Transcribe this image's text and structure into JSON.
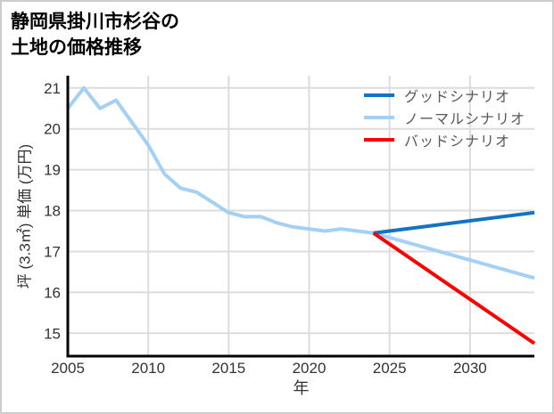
{
  "page": {
    "background": "#ffffff",
    "border_color": "#cccccc"
  },
  "header": {
    "title_lines": [
      "静岡県掛川市杉谷の",
      "土地の価格推移"
    ]
  },
  "chart_data": {
    "type": "line",
    "title": "静岡県掛川市杉谷の土地の価格推移",
    "xlabel": "年",
    "ylabel": "坪 (3.3㎡) 単価 (万円)",
    "xlim": [
      2005,
      2034
    ],
    "ylim": [
      14.44,
      21.3
    ],
    "x_ticks": [
      2005,
      2010,
      2015,
      2020,
      2025,
      2030
    ],
    "y_ticks": [
      15,
      16,
      17,
      18,
      19,
      20,
      21
    ],
    "grid": true,
    "legend_position": "top-right",
    "axis_color": "#000000",
    "grid_color": "#dcdcdc",
    "tick_label_color": "#333333",
    "legend_text_color": "#595959",
    "series": [
      {
        "name": "グッドシナリオ",
        "color": "#1272c4",
        "x": [
          2024,
          2034
        ],
        "values": [
          17.45,
          17.95
        ]
      },
      {
        "name": "ノーマルシナリオ",
        "color": "#a3d0f3",
        "x": [
          2005,
          2006,
          2007,
          2008,
          2009,
          2010,
          2011,
          2012,
          2013,
          2014,
          2015,
          2016,
          2017,
          2018,
          2019,
          2020,
          2021,
          2022,
          2023,
          2024,
          2034
        ],
        "values": [
          20.5,
          21.0,
          20.5,
          20.7,
          20.15,
          19.6,
          18.9,
          18.55,
          18.45,
          18.2,
          17.95,
          17.85,
          17.85,
          17.7,
          17.6,
          17.55,
          17.5,
          17.55,
          17.5,
          17.45,
          16.35
        ]
      },
      {
        "name": "バッドシナリオ",
        "color": "#ff0000",
        "x": [
          2024,
          2034
        ],
        "values": [
          17.45,
          14.75
        ]
      }
    ]
  }
}
